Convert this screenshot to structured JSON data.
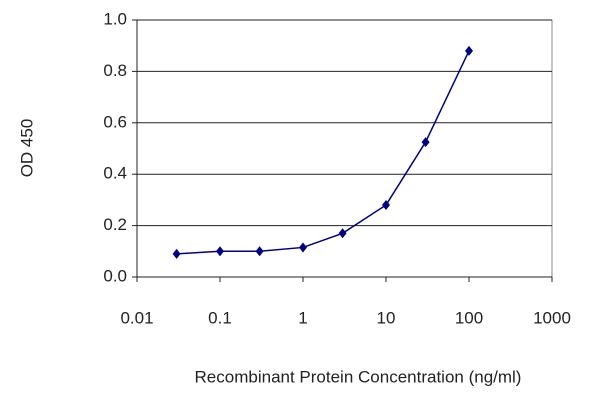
{
  "chart_data": {
    "type": "line",
    "x_label": "Recombinant Protein Concentration (ng/ml)",
    "y_label": "OD 450",
    "x": [
      0.03,
      0.1,
      0.3,
      1,
      3,
      10,
      30,
      100
    ],
    "series": [
      {
        "name": "OD 450",
        "color": "#000080",
        "values": [
          0.09,
          0.1,
          0.1,
          0.115,
          0.17,
          0.28,
          0.525,
          0.88
        ]
      }
    ],
    "xscale": "log",
    "xlim": [
      0.01,
      1000
    ],
    "xticks": [
      0.01,
      0.1,
      1,
      10,
      100,
      1000
    ],
    "ylim": [
      0,
      1
    ],
    "yticks": [
      {
        "value": 0,
        "label": "0.0"
      },
      {
        "value": 0.2,
        "label": "0.2"
      },
      {
        "value": 0.4,
        "label": "0.4"
      },
      {
        "value": 0.6,
        "label": "0.6"
      },
      {
        "value": 0.8,
        "label": "0.8"
      },
      {
        "value": 1,
        "label": "1.0"
      }
    ],
    "grid": true
  }
}
